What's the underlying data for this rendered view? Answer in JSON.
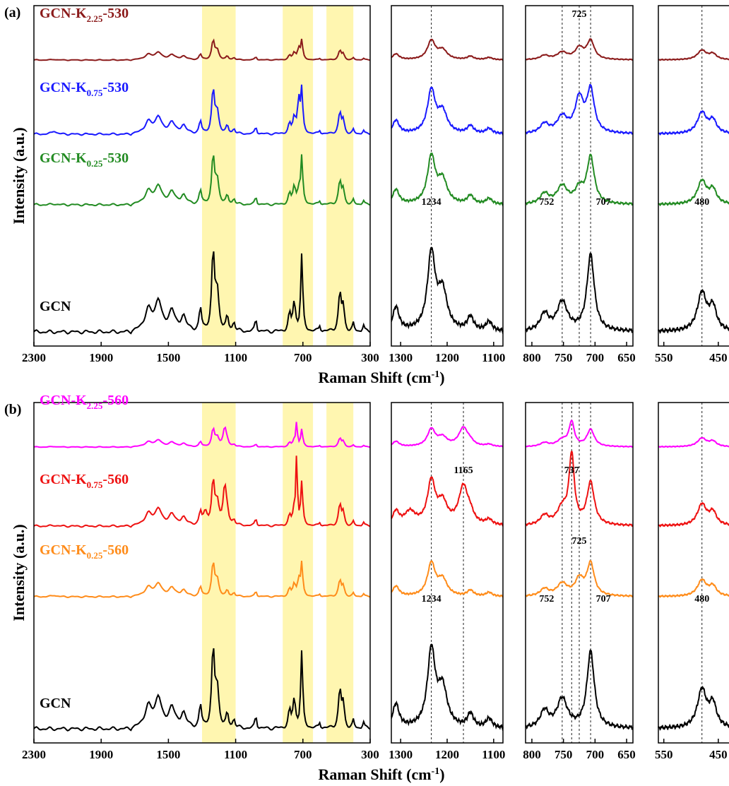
{
  "figure": {
    "ylabel": "Intensity (a.u.)",
    "xlabel": "Raman Shift (cm",
    "xlabel_sup": "-1",
    "xlabel_close": ")"
  },
  "chart_data": [
    {
      "panel": "(a)",
      "type": "line",
      "xlabel": "Raman Shift (cm-1)",
      "ylabel": "Intensity (a.u.)",
      "highlight_bands": [
        [
          1300,
          1100
        ],
        [
          820,
          640
        ],
        [
          560,
          400
        ]
      ],
      "subplots": [
        {
          "xlim": [
            2300,
            300
          ],
          "ticks": [
            "2300",
            "1900",
            "1500",
            "1100",
            "700",
            "300"
          ],
          "dashed_lines": [],
          "annotations": []
        },
        {
          "xlim": [
            1320,
            1080
          ],
          "ticks": [
            "1300",
            "1200",
            "1100"
          ],
          "dashed_lines": [
            1234
          ],
          "annotations": [
            {
              "text": "1234",
              "x": 1234,
              "series": "GCN"
            }
          ]
        },
        {
          "xlim": [
            810,
            640
          ],
          "ticks": [
            "800",
            "750",
            "700",
            "650"
          ],
          "dashed_lines": [
            752,
            725,
            707
          ],
          "annotations": [
            {
              "text": "725",
              "x": 725,
              "series": "GCN-K2.25-530"
            },
            {
              "text": "752",
              "x": 752,
              "series": "GCN"
            },
            {
              "text": "707",
              "x": 707,
              "series": "GCN"
            }
          ]
        },
        {
          "xlim": [
            560,
            420
          ],
          "ticks": [
            "550",
            "450"
          ],
          "dashed_lines": [
            480
          ],
          "annotations": [
            {
              "text": "480",
              "x": 480,
              "series": "GCN"
            }
          ]
        }
      ],
      "series": [
        {
          "base": "GCN-K",
          "sub": "2.25",
          "suffix": "-530",
          "color": "#8b1a1a",
          "scale": 0.22
        },
        {
          "base": "GCN-K",
          "sub": "0.75",
          "suffix": "-530",
          "color": "#1a1aff",
          "scale": 0.5
        },
        {
          "base": "GCN-K",
          "sub": "0.25",
          "suffix": "-530",
          "color": "#228b22",
          "scale": 0.55
        },
        {
          "base": "GCN",
          "sub": "",
          "suffix": "",
          "color": "#000000",
          "scale": 0.9
        }
      ]
    },
    {
      "panel": "(b)",
      "type": "line",
      "xlabel": "Raman Shift (cm-1)",
      "ylabel": "Intensity (a.u.)",
      "highlight_bands": [
        [
          1300,
          1100
        ],
        [
          820,
          640
        ],
        [
          560,
          400
        ]
      ],
      "subplots": [
        {
          "xlim": [
            2300,
            300
          ],
          "ticks": [
            "2300",
            "1900",
            "1500",
            "1100",
            "700",
            "300"
          ],
          "dashed_lines": [],
          "annotations": []
        },
        {
          "xlim": [
            1320,
            1080
          ],
          "ticks": [
            "1300",
            "1200",
            "1100"
          ],
          "dashed_lines": [
            1234,
            1165
          ],
          "annotations": [
            {
              "text": "1165",
              "x": 1165,
              "series": "GCN-K0.75-560"
            },
            {
              "text": "1234",
              "x": 1234,
              "series": "GCN"
            }
          ]
        },
        {
          "xlim": [
            810,
            640
          ],
          "ticks": [
            "800",
            "750",
            "700",
            "650"
          ],
          "dashed_lines": [
            752,
            737,
            725,
            707
          ],
          "annotations": [
            {
              "text": "737",
              "x": 737,
              "series": "GCN-K0.75-560"
            },
            {
              "text": "725",
              "x": 725,
              "series": "GCN-K0.25-560"
            },
            {
              "text": "752",
              "x": 752,
              "series": "GCN"
            },
            {
              "text": "707",
              "x": 707,
              "series": "GCN"
            }
          ]
        },
        {
          "xlim": [
            560,
            420
          ],
          "ticks": [
            "550",
            "450"
          ],
          "dashed_lines": [
            480
          ],
          "annotations": [
            {
              "text": "480",
              "x": 480,
              "series": "GCN"
            }
          ]
        }
      ],
      "series": [
        {
          "base": "GCN-K",
          "sub": "2.25",
          "suffix": "-560",
          "color": "#ff00ff",
          "scale": 0.2
        },
        {
          "base": "GCN-K",
          "sub": "0.75",
          "suffix": "-560",
          "color": "#ee1111",
          "scale": 0.5
        },
        {
          "base": "GCN-K",
          "sub": "0.25",
          "suffix": "-560",
          "color": "#ff8c1a",
          "scale": 0.38
        },
        {
          "base": "GCN",
          "sub": "",
          "suffix": "",
          "color": "#000000",
          "scale": 0.9
        }
      ]
    }
  ]
}
